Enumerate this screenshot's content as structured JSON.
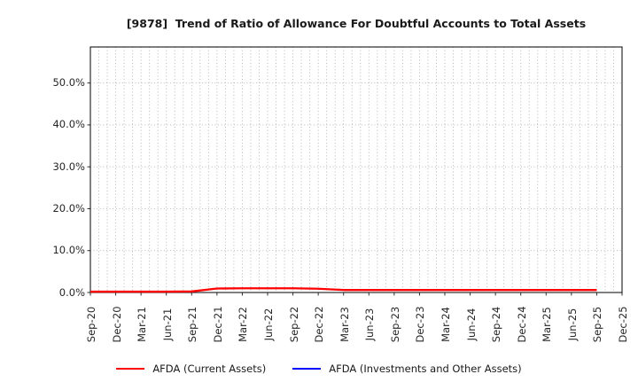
{
  "chart_data": {
    "type": "line",
    "title": "[9878]  Trend of Ratio of Allowance For Doubtful Accounts to Total Assets",
    "x_labels": [
      "Sep-20",
      "Dec-20",
      "Mar-21",
      "Jun-21",
      "Sep-21",
      "Dec-21",
      "Mar-22",
      "Jun-22",
      "Sep-22",
      "Dec-22",
      "Mar-23",
      "Jun-23",
      "Sep-23",
      "Dec-23",
      "Mar-24",
      "Jun-24",
      "Sep-24",
      "Dec-24",
      "Mar-25",
      "Jun-25",
      "Sep-25",
      "Dec-25"
    ],
    "y_ticks": [
      "0.0%",
      "10.0%",
      "20.0%",
      "30.0%",
      "40.0%",
      "50.0%"
    ],
    "y_tick_values": [
      0,
      10,
      20,
      30,
      40,
      50
    ],
    "ylim": [
      0,
      58.6
    ],
    "unit": "percent",
    "grid": {
      "horizontal": "dotted at each 10% tick",
      "vertical": "dotted monthly"
    },
    "legend_position": "bottom-center",
    "series": [
      {
        "name": "AFDA (Current Assets)",
        "color": "#ff0000",
        "x": [
          "Sep-20",
          "Dec-20",
          "Mar-21",
          "Jun-21",
          "Sep-21",
          "Dec-21",
          "Mar-22",
          "Jun-22",
          "Sep-22",
          "Dec-22",
          "Mar-23",
          "Jun-23",
          "Sep-23",
          "Dec-23",
          "Mar-24",
          "Jun-24",
          "Sep-24",
          "Dec-24",
          "Mar-25",
          "Jun-25",
          "Sep-25"
        ],
        "values": [
          0.2,
          0.2,
          0.2,
          0.2,
          0.25,
          0.95,
          1.0,
          1.0,
          1.0,
          0.9,
          0.6,
          0.6,
          0.6,
          0.6,
          0.6,
          0.6,
          0.6,
          0.6,
          0.6,
          0.6,
          0.6
        ]
      },
      {
        "name": "AFDA (Investments and Other Assets)",
        "color": "#0000ff",
        "values": [],
        "visible_in_plot": false
      }
    ],
    "colors": {
      "spine": "#2b2b2b",
      "gridline": "#b0b0b0",
      "text": "#1a1a1a",
      "background": "#ffffff"
    }
  }
}
